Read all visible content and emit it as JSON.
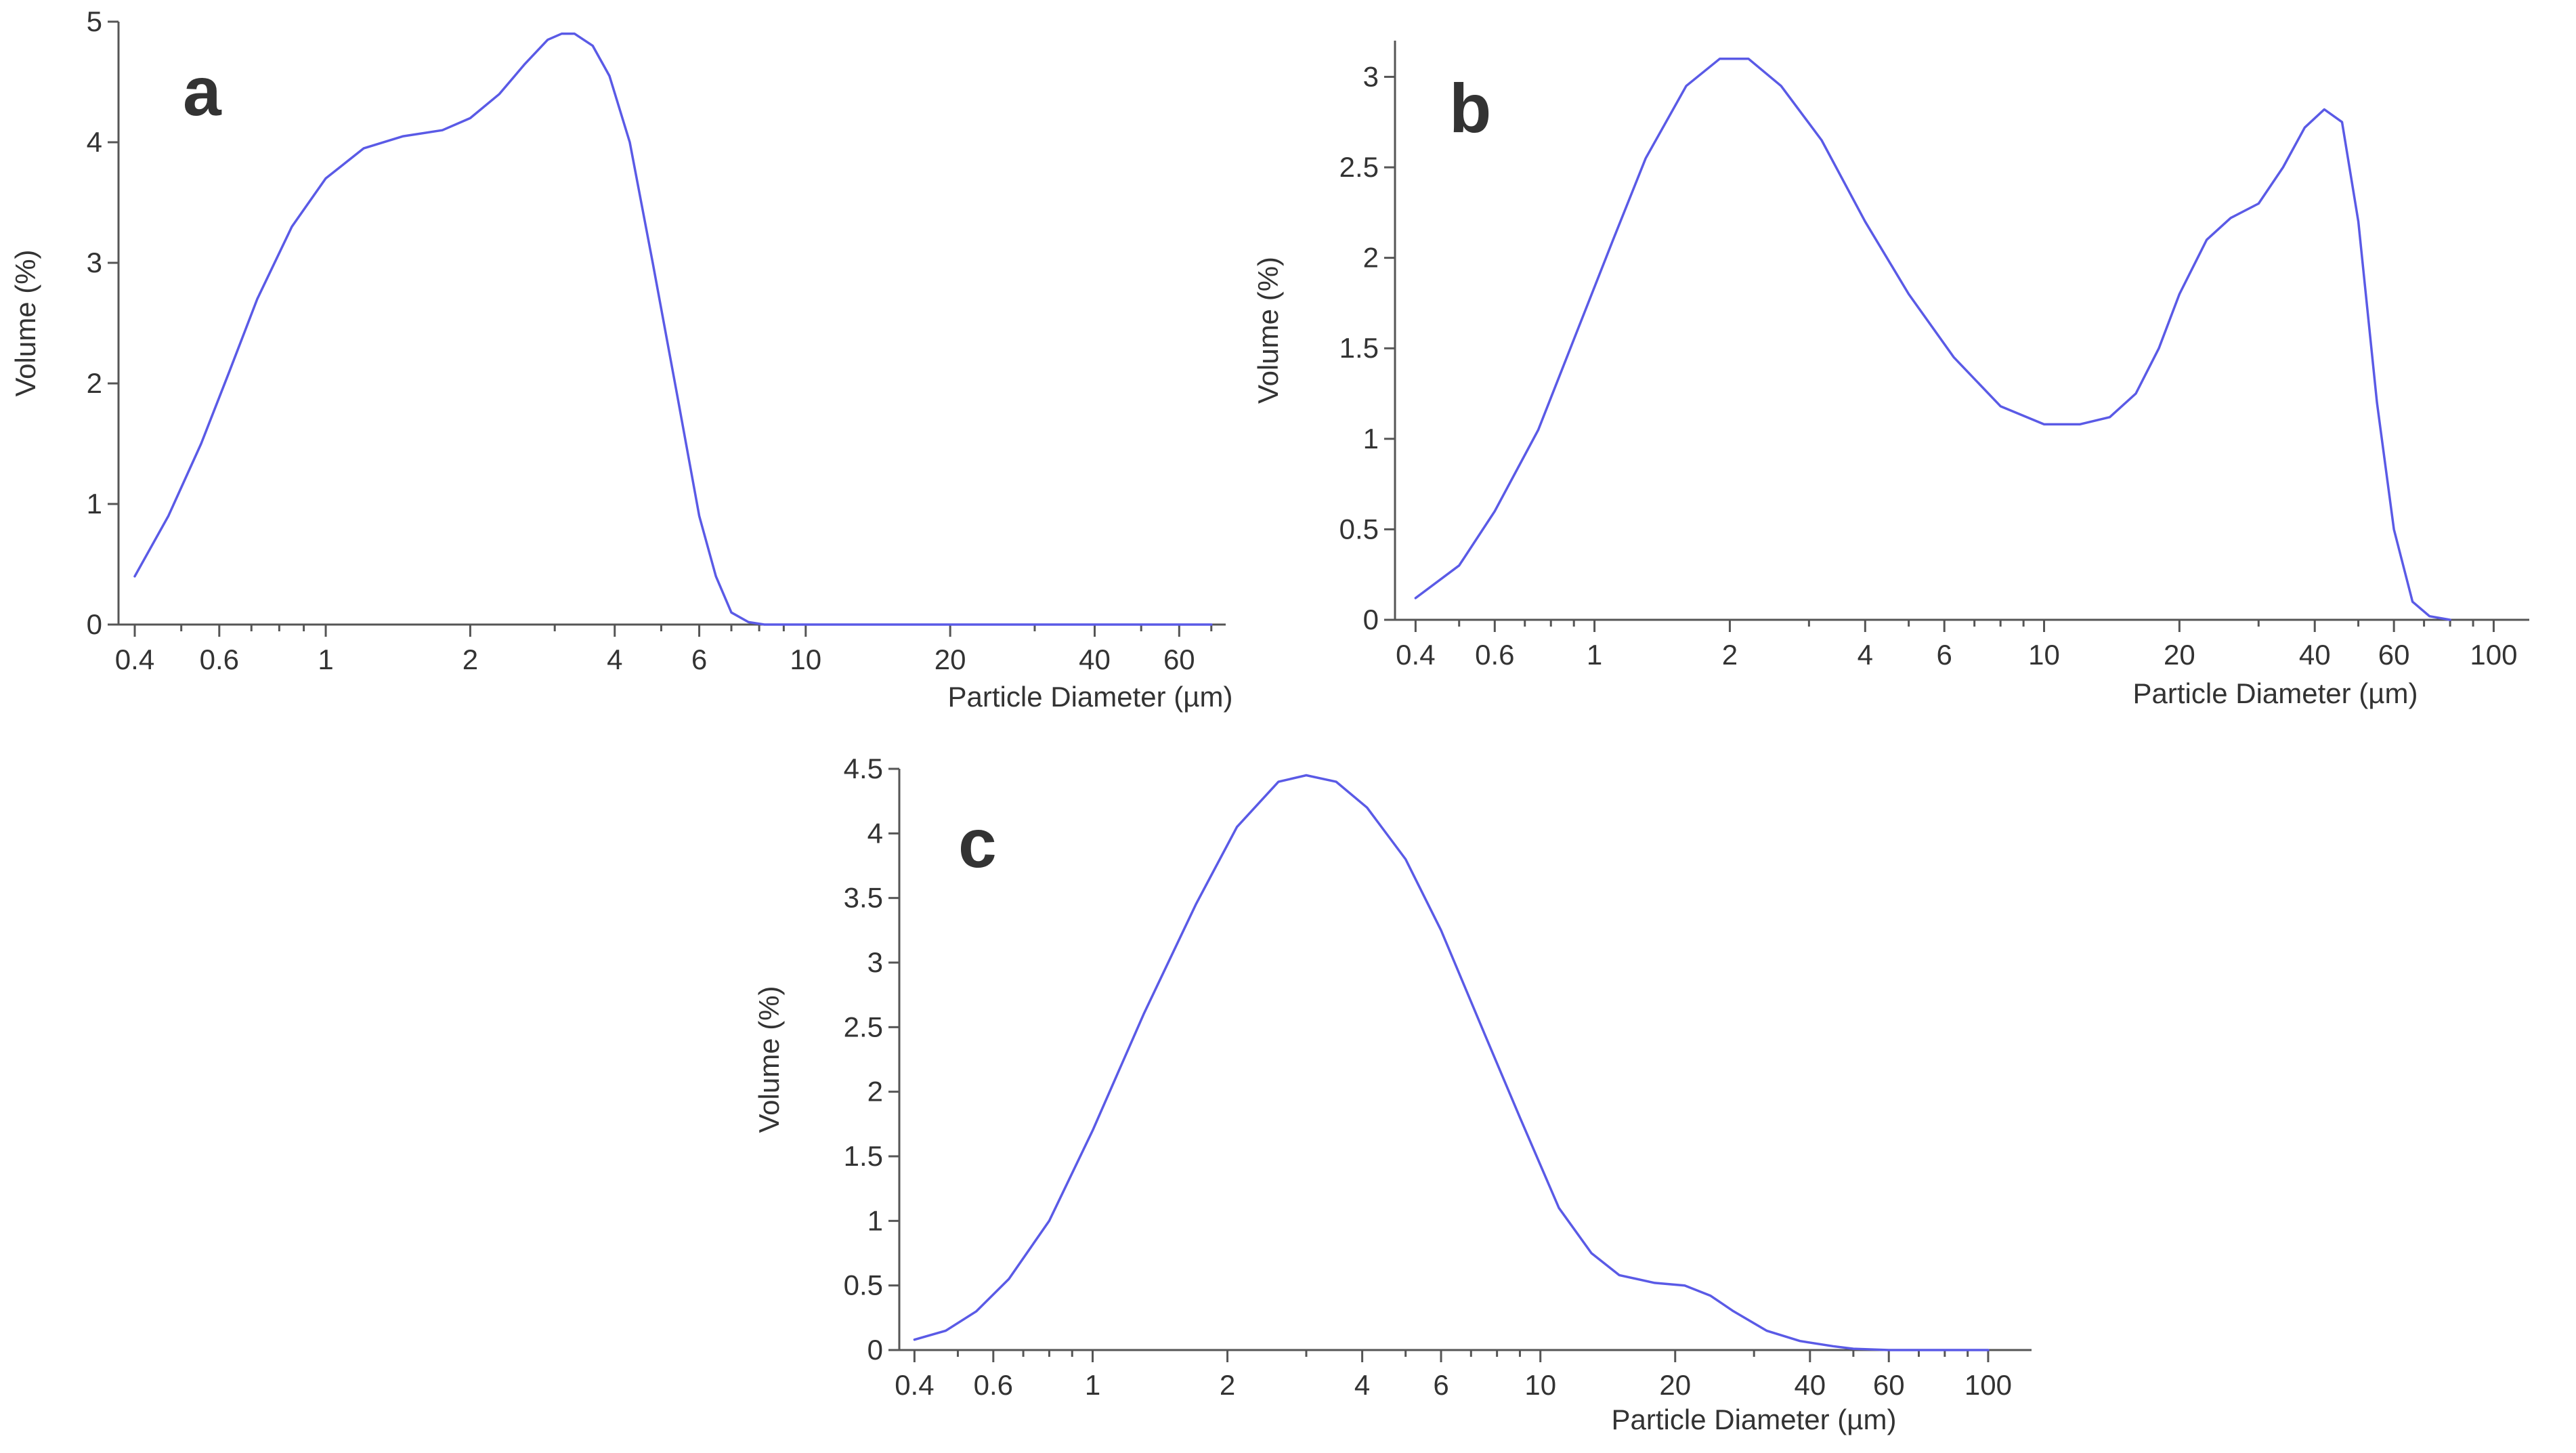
{
  "figure": {
    "colors": {
      "curve": "#5a5ae6",
      "axis": "#555555",
      "text": "#333333"
    }
  },
  "chart_data": [
    {
      "panel": "a",
      "type": "line",
      "label": "a",
      "xlabel": "Particle Diameter (µm)",
      "ylabel": "Volume (%)",
      "xscale": "log",
      "xlim": [
        0.37,
        75
      ],
      "ylim": [
        0,
        5
      ],
      "xticks": [
        0.4,
        0.6,
        1,
        2,
        4,
        6,
        10,
        20,
        40,
        60
      ],
      "xtick_labels": [
        "0.4",
        "0.6",
        "1",
        "2",
        "4",
        "6",
        "10",
        "20",
        "40",
        "60"
      ],
      "xminor": [
        0.5,
        0.7,
        0.8,
        0.9,
        3,
        5,
        7,
        8,
        9,
        30,
        50,
        70
      ],
      "yticks": [
        0,
        1,
        2,
        3,
        4,
        5
      ],
      "ytick_labels": [
        "0",
        "1",
        "2",
        "3",
        "4",
        "5"
      ],
      "series": [
        {
          "name": "Volume (%)",
          "x": [
            0.4,
            0.47,
            0.55,
            0.63,
            0.72,
            0.85,
            1.0,
            1.2,
            1.45,
            1.75,
            2.0,
            2.3,
            2.6,
            2.9,
            3.1,
            3.3,
            3.6,
            3.9,
            4.3,
            4.8,
            5.4,
            6.0,
            6.5,
            7.0,
            7.6,
            8.2,
            9.0,
            10.0,
            15,
            20,
            40,
            70
          ],
          "y": [
            0.4,
            0.9,
            1.5,
            2.1,
            2.7,
            3.3,
            3.7,
            3.95,
            4.05,
            4.1,
            4.2,
            4.4,
            4.65,
            4.85,
            4.9,
            4.9,
            4.8,
            4.55,
            4.0,
            3.0,
            1.9,
            0.9,
            0.4,
            0.1,
            0.02,
            0.0,
            0.0,
            0.0,
            0.0,
            0.0,
            0.0,
            0.0
          ]
        }
      ]
    },
    {
      "panel": "b",
      "type": "line",
      "label": "b",
      "xlabel": "Particle Diameter (µm)",
      "ylabel": "Volume (%)",
      "xscale": "log",
      "xlim": [
        0.36,
        120
      ],
      "ylim": [
        0,
        3.2
      ],
      "xticks": [
        0.4,
        0.6,
        1,
        2,
        4,
        6,
        10,
        20,
        40,
        60,
        100
      ],
      "xtick_labels": [
        "0.4",
        "0.6",
        "1",
        "2",
        "4",
        "6",
        "10",
        "20",
        "40",
        "60",
        "100"
      ],
      "xminor": [
        0.5,
        0.7,
        0.8,
        0.9,
        3,
        5,
        7,
        8,
        9,
        30,
        50,
        70,
        80,
        90
      ],
      "yticks": [
        0,
        0.5,
        1,
        1.5,
        2,
        2.5,
        3
      ],
      "ytick_labels": [
        "0",
        "0.5",
        "1",
        "1.5",
        "2",
        "2.5",
        "3"
      ],
      "series": [
        {
          "name": "Volume (%)",
          "x": [
            0.4,
            0.5,
            0.6,
            0.75,
            0.9,
            1.1,
            1.3,
            1.6,
            1.9,
            2.2,
            2.6,
            3.2,
            4.0,
            5.0,
            6.3,
            8.0,
            10.0,
            12.0,
            14.0,
            16.0,
            18.0,
            20.0,
            23.0,
            26.0,
            30.0,
            34.0,
            38.0,
            42.0,
            46.0,
            50.0,
            55.0,
            60.0,
            66.0,
            72.0,
            80.0
          ],
          "y": [
            0.12,
            0.3,
            0.6,
            1.05,
            1.55,
            2.1,
            2.55,
            2.95,
            3.1,
            3.1,
            2.95,
            2.65,
            2.2,
            1.8,
            1.45,
            1.18,
            1.08,
            1.08,
            1.12,
            1.25,
            1.5,
            1.8,
            2.1,
            2.22,
            2.3,
            2.5,
            2.72,
            2.82,
            2.75,
            2.2,
            1.2,
            0.5,
            0.1,
            0.02,
            0.0
          ]
        }
      ]
    },
    {
      "panel": "c",
      "type": "line",
      "label": "c",
      "xlabel": "Particle Diameter (µm)",
      "ylabel": "Volume (%)",
      "xscale": "log",
      "xlim": [
        0.37,
        125
      ],
      "ylim": [
        0,
        4.5
      ],
      "xticks": [
        0.4,
        0.6,
        1,
        2,
        4,
        6,
        10,
        20,
        40,
        60,
        100
      ],
      "xtick_labels": [
        "0.4",
        "0.6",
        "1",
        "2",
        "4",
        "6",
        "10",
        "20",
        "40",
        "60",
        "100"
      ],
      "xminor": [
        0.5,
        0.7,
        0.8,
        0.9,
        3,
        5,
        7,
        8,
        9,
        30,
        50,
        70,
        80,
        90
      ],
      "yticks": [
        0,
        0.5,
        1,
        1.5,
        2,
        2.5,
        3,
        3.5,
        4,
        4.5
      ],
      "ytick_labels": [
        "0",
        "0.5",
        "1",
        "1.5",
        "2",
        "2.5",
        "3",
        "3.5",
        "4",
        "4.5"
      ],
      "series": [
        {
          "name": "Volume (%)",
          "x": [
            0.4,
            0.47,
            0.55,
            0.65,
            0.8,
            1.0,
            1.3,
            1.7,
            2.1,
            2.6,
            3.0,
            3.5,
            4.1,
            5.0,
            6.0,
            7.5,
            9.0,
            11.0,
            13.0,
            15.0,
            18.0,
            21.0,
            24.0,
            27.0,
            32.0,
            38.0,
            45.0,
            50.0,
            60.0,
            100.0
          ],
          "y": [
            0.08,
            0.15,
            0.3,
            0.55,
            1.0,
            1.7,
            2.6,
            3.45,
            4.05,
            4.4,
            4.45,
            4.4,
            4.2,
            3.8,
            3.25,
            2.45,
            1.8,
            1.1,
            0.75,
            0.58,
            0.52,
            0.5,
            0.42,
            0.3,
            0.15,
            0.07,
            0.03,
            0.01,
            0.0,
            0.0
          ]
        }
      ]
    }
  ]
}
